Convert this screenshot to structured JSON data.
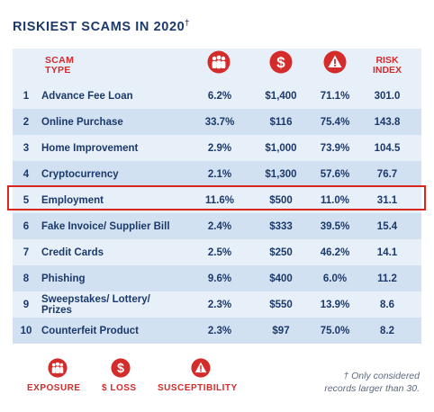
{
  "title": "RISKIEST SCAMS IN 2020",
  "title_mark": "†",
  "header": {
    "type_line1": "SCAM",
    "type_line2": "TYPE",
    "risk_line1": "RISK",
    "risk_line2": "INDEX",
    "exposure_icon": "people-group-icon",
    "loss_icon": "dollar-circle-icon",
    "susceptibility_icon": "warning-triangle-icon"
  },
  "rows": [
    {
      "num": "1",
      "name": "Advance Fee Loan",
      "exposure": "6.2%",
      "loss": "$1,400",
      "susceptibility": "71.1%",
      "risk": "301.0"
    },
    {
      "num": "2",
      "name": "Online Purchase",
      "exposure": "33.7%",
      "loss": "$116",
      "susceptibility": "75.4%",
      "risk": "143.8"
    },
    {
      "num": "3",
      "name": "Home Improvement",
      "exposure": "2.9%",
      "loss": "$1,000",
      "susceptibility": "73.9%",
      "risk": "104.5"
    },
    {
      "num": "4",
      "name": "Cryptocurrency",
      "exposure": "2.1%",
      "loss": "$1,300",
      "susceptibility": "57.6%",
      "risk": "76.7"
    },
    {
      "num": "5",
      "name": "Employment",
      "exposure": "11.6%",
      "loss": "$500",
      "susceptibility": "11.0%",
      "risk": "31.1"
    },
    {
      "num": "6",
      "name": "Fake Invoice/ Supplier Bill",
      "exposure": "2.4%",
      "loss": "$333",
      "susceptibility": "39.5%",
      "risk": "15.4"
    },
    {
      "num": "7",
      "name": "Credit Cards",
      "exposure": "2.5%",
      "loss": "$250",
      "susceptibility": "46.2%",
      "risk": "14.1"
    },
    {
      "num": "8",
      "name": "Phishing",
      "exposure": "9.6%",
      "loss": "$400",
      "susceptibility": "6.0%",
      "risk": "11.2"
    },
    {
      "num": "9",
      "name": "Sweepstakes/ Lottery/ Prizes",
      "exposure": "2.3%",
      "loss": "$550",
      "susceptibility": "13.9%",
      "risk": "8.6"
    },
    {
      "num": "10",
      "name": "Counterfeit Product",
      "exposure": "2.3%",
      "loss": "$97",
      "susceptibility": "75.0%",
      "risk": "8.2"
    }
  ],
  "highlighted_row": "5",
  "legend": {
    "exposure": "EXPOSURE",
    "loss": "$ LOSS",
    "susceptibility": "SUSCEPTIBILITY"
  },
  "footnote_line1": "† Only considered",
  "footnote_line2": "records larger than 30.",
  "colors": {
    "navy": "#1b3a6b",
    "red": "#d42b2b",
    "row_light": "#e7eff9",
    "row_dark": "#d2e1f2",
    "highlight_border": "#d9261c"
  }
}
